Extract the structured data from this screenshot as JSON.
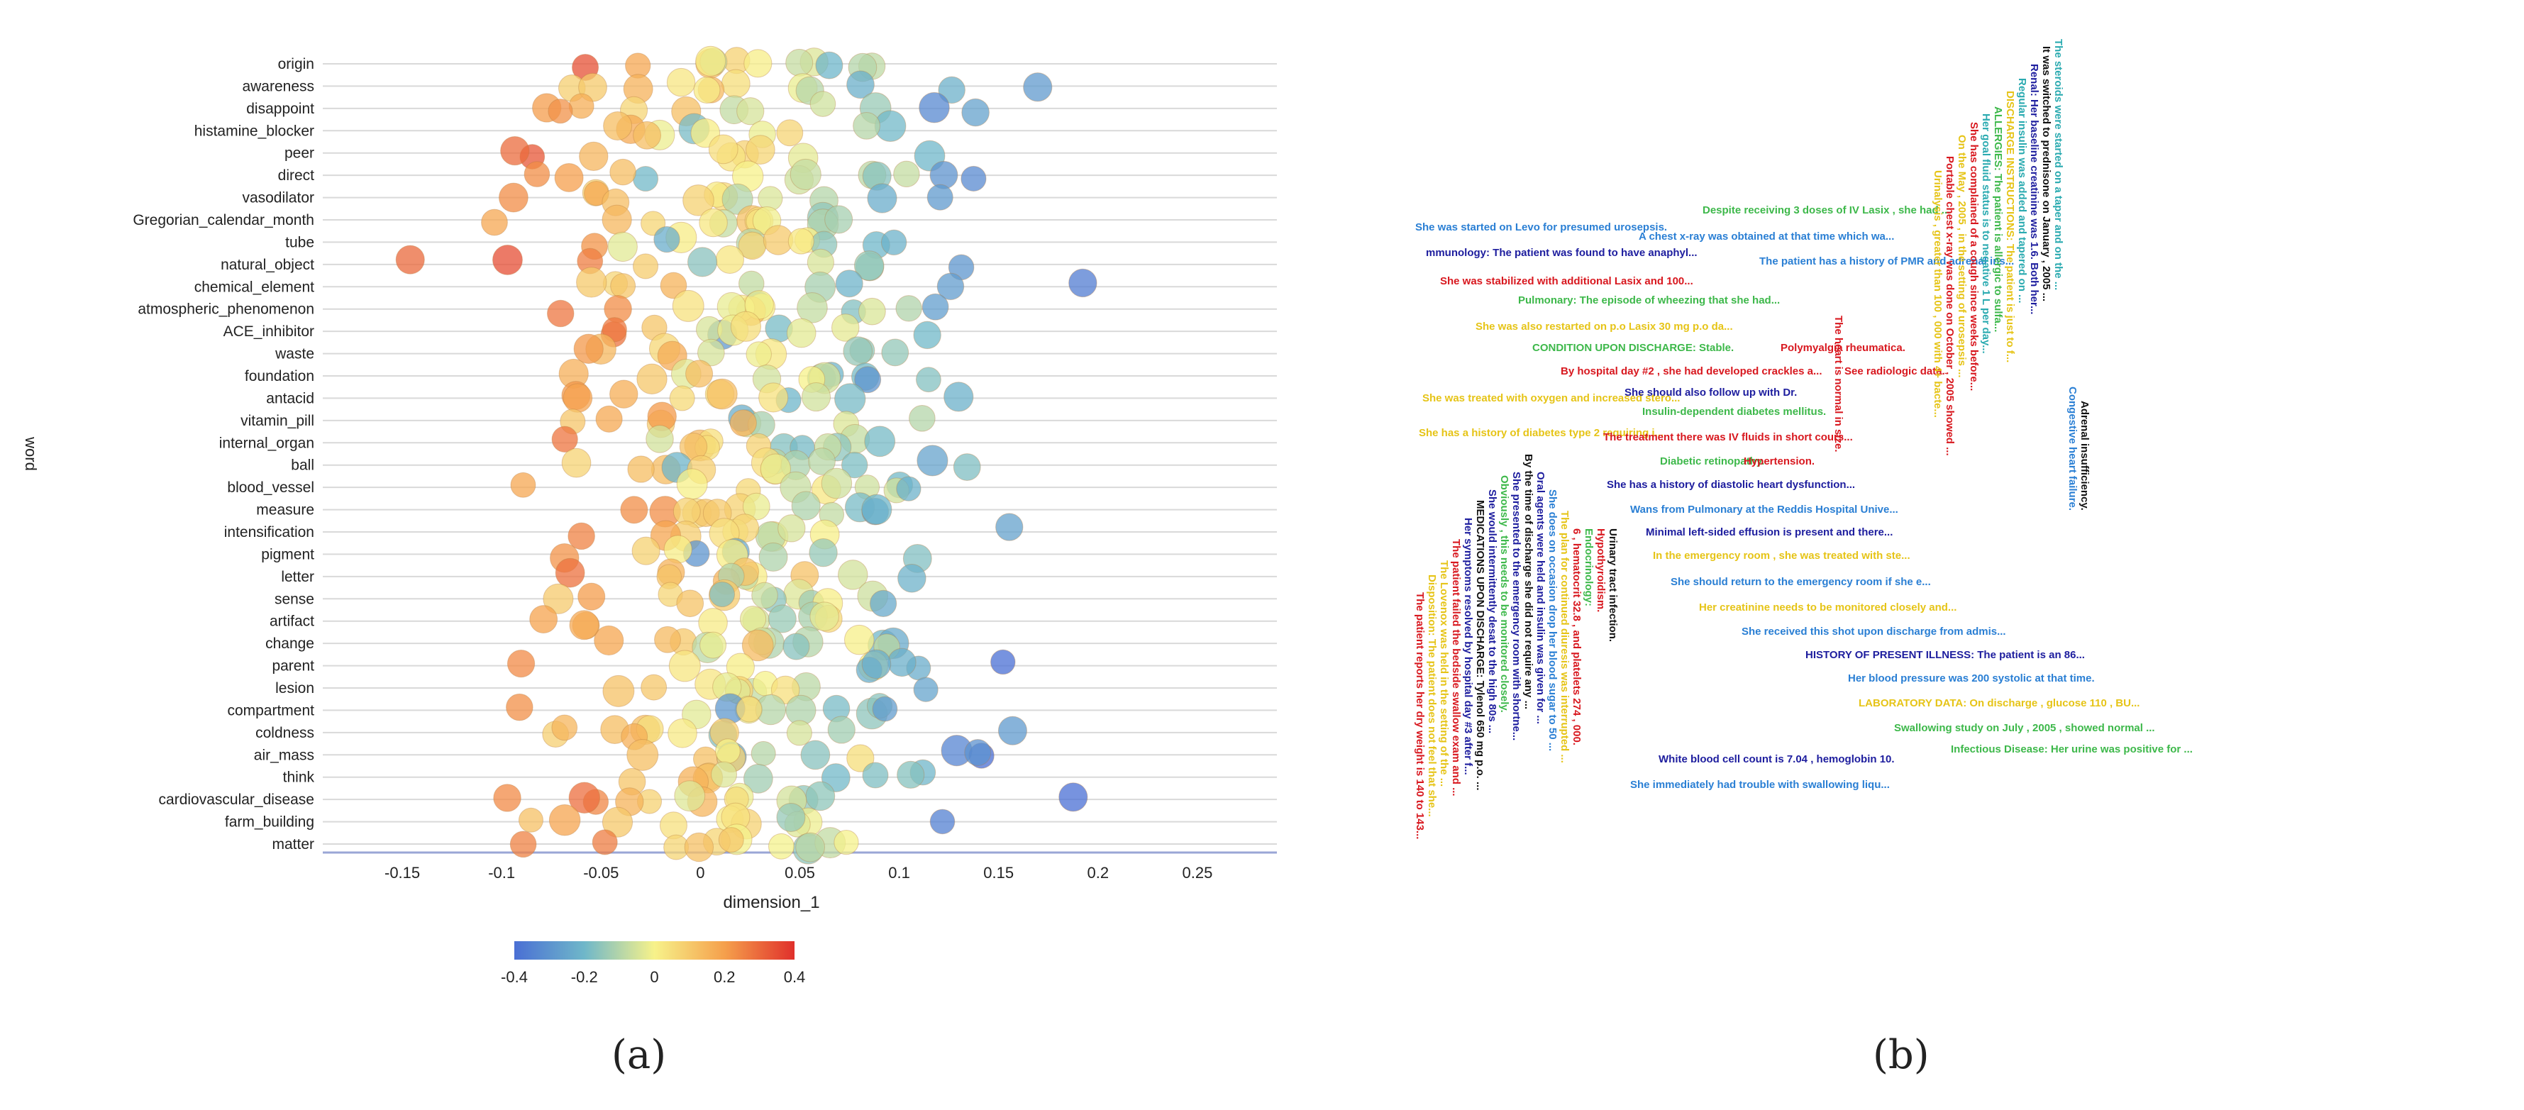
{
  "chart_data": [
    {
      "type": "scatter",
      "panel": "a",
      "xlabel": "dimension_1",
      "ylabel": "word",
      "xlim": [
        -0.19,
        0.29
      ],
      "xticks": [
        "-0.15",
        "-0.1",
        "-0.05",
        "0",
        "0.05",
        "0.1",
        "0.15",
        "0.2",
        "0.25"
      ],
      "xtick_values": [
        -0.15,
        -0.1,
        -0.05,
        0,
        0.05,
        0.1,
        0.15,
        0.2,
        0.25
      ],
      "categories": [
        "origin",
        "awareness",
        "disappoint",
        "histamine_blocker",
        "peer",
        "direct",
        "vasodilator",
        "Gregorian_calendar_month",
        "tube",
        "natural_object",
        "chemical_element",
        "atmospheric_phenomenon",
        "ACE_inhibitor",
        "waste",
        "foundation",
        "antacid",
        "vitamin_pill",
        "internal_organ",
        "ball",
        "blood_vessel",
        "measure",
        "intensification",
        "pigment",
        "letter",
        "sense",
        "artifact",
        "change",
        "parent",
        "lesion",
        "compartment",
        "coldness",
        "air_mass",
        "think",
        "cardiovascular_disease",
        "farm_building",
        "matter"
      ],
      "colorbar": {
        "min": -0.4,
        "max": 0.4,
        "ticks": [
          "-0.4",
          "-0.2",
          "0",
          "0.2",
          "0.4"
        ],
        "tick_values": [
          -0.4,
          -0.2,
          0,
          0.2,
          0.4
        ]
      },
      "colors": {
        "blue": "#4a6fd4",
        "cyan": "#6fb7c9",
        "yellow": "#f7f28a",
        "orange": "#f5a04c",
        "red": "#e0302b"
      },
      "caption": "(a)"
    },
    {
      "type": "text",
      "panel": "b",
      "caption": "(b)",
      "snippets": [
        {
          "text": "She was started on Levo for presumed urosepsis.",
          "color": "#2a7fd4"
        },
        {
          "text": "Despite receiving 3 doses of IV Lasix , she had ...",
          "color": "#3db84a"
        },
        {
          "text": "A chest x-ray was obtained at that time which wa...",
          "color": "#2a7fd4"
        },
        {
          "text": "mmunology: The patient was found to have anaphyl...",
          "color": "#1d1d9e"
        },
        {
          "text": "The patient has a history of PMR and adrenal ins...",
          "color": "#2a7fd4"
        },
        {
          "text": "She was stabilized with additional Lasix and 100...",
          "color": "#d8181f"
        },
        {
          "text": "Pulmonary: The episode of wheezing that she had...",
          "color": "#3db84a"
        },
        {
          "text": "She was also restarted on p.o Lasix 30 mg p.o da...",
          "color": "#e6c417"
        },
        {
          "text": "CONDITION UPON DISCHARGE: Stable.",
          "color": "#3db84a"
        },
        {
          "text": "Polymyalgia rheumatica.",
          "color": "#d8181f"
        },
        {
          "text": "By hospital day #2 , she had developed crackles a...",
          "color": "#d8181f"
        },
        {
          "text": "See radiologic data.",
          "color": "#d8181f"
        },
        {
          "text": "She was treated with oxygen and increased stero...",
          "color": "#e6c417"
        },
        {
          "text": "She should also follow up with Dr.",
          "color": "#1d1d9e"
        },
        {
          "text": "Insulin-dependent diabetes mellitus.",
          "color": "#3db84a"
        },
        {
          "text": "She has a history of diabetes type 2 requiring i...",
          "color": "#e6c417"
        },
        {
          "text": "The treatment there was IV fluids in short cours...",
          "color": "#d8181f"
        },
        {
          "text": "Diabetic retinopathy.",
          "color": "#3db84a"
        },
        {
          "text": "Hypertension.",
          "color": "#d8181f"
        },
        {
          "text": "She has a history of diastolic heart dysfunction...",
          "color": "#1d1d9e"
        },
        {
          "text": "Wans from Pulmonary at the Reddis Hospital Unive...",
          "color": "#2a7fd4"
        },
        {
          "text": "Minimal left-sided effusion is present and there...",
          "color": "#1d1d9e"
        },
        {
          "text": "In the emergency room , she was treated with ste...",
          "color": "#e6c417"
        },
        {
          "text": "She should return to the emergency room if she e...",
          "color": "#2a7fd4"
        },
        {
          "text": "Her creatinine needs to be monitored closely and...",
          "color": "#e6c417"
        },
        {
          "text": "She received this shot upon discharge from admis...",
          "color": "#2a7fd4"
        },
        {
          "text": "HISTORY OF PRESENT ILLNESS: The patient is an 86...",
          "color": "#1d1d9e"
        },
        {
          "text": "Her blood pressure was 200 systolic at that time.",
          "color": "#2a7fd4"
        },
        {
          "text": "LABORATORY DATA: On discharge , glucose 110 , BU...",
          "color": "#e6c417"
        },
        {
          "text": "Swallowing study on July , 2005 , showed normal ...",
          "color": "#3db84a"
        },
        {
          "text": "Infectious Disease: Her urine was positive for ...",
          "color": "#3db84a"
        },
        {
          "text": "White blood cell count is 7.04 , hemoglobin 10.",
          "color": "#1d1d9e"
        },
        {
          "text": "She immediately had trouble with swallowing liqu...",
          "color": "#2a7fd4"
        },
        {
          "text": "Urinary tract infection.",
          "color": "#111111"
        },
        {
          "text": "Hypothyroidism.",
          "color": "#d8181f"
        },
        {
          "text": "Endocrinology:",
          "color": "#3db84a"
        },
        {
          "text": "6 , hematocrit 32.8 , and platelets 274 , 000.",
          "color": "#d8181f"
        },
        {
          "text": "The plan for continued diuresis was interrupted ...",
          "color": "#e6c417"
        },
        {
          "text": "She does on occasion drop her blood sugar to 50 ...",
          "color": "#2a7fd4"
        },
        {
          "text": "Oral agents were held and insulin was given for ...",
          "color": "#1d1d9e"
        },
        {
          "text": "By the time of discharge she did not require any ...",
          "color": "#111111"
        },
        {
          "text": "She presented to the emergency room with shortne...",
          "color": "#1d1d9e"
        },
        {
          "text": "Obviously , this needs to be monitored closely.",
          "color": "#3db84a"
        },
        {
          "text": "She would intermittently desat to the high 80s ...",
          "color": "#1d1d9e"
        },
        {
          "text": "MEDICATIONS UPON DISCHARGE: Tylenol 650 mg p.o. ...",
          "color": "#111111"
        },
        {
          "text": "Her symptoms resolved by hospital day #3 after f...",
          "color": "#1d1d9e"
        },
        {
          "text": "The patient failed the bedside swallow exam and ...",
          "color": "#d8181f"
        },
        {
          "text": "The Lovenox was held in the setting of the ...",
          "color": "#e6c417"
        },
        {
          "text": "Disposition: The patient does not feel that she...",
          "color": "#e6c417"
        },
        {
          "text": "The patient reports her dry weight is 140 to 143...",
          "color": "#d8181f"
        },
        {
          "text": "The steroids were started on a taper and on the ...",
          "color": "#2aaab0"
        },
        {
          "text": "It was switched to prednisone on January , 2005 ...",
          "color": "#111111"
        },
        {
          "text": "Renal: Her baseline creatinine was 1.6. Both her...",
          "color": "#1d1d9e"
        },
        {
          "text": "Regular insulin was added and tapered on ...",
          "color": "#2aaab0"
        },
        {
          "text": "DISCHARGE INSTRUCTIONS: The patient is just to f...",
          "color": "#e6c417"
        },
        {
          "text": "ALLERGIES: The patient is allergic to sulfa...",
          "color": "#3db84a"
        },
        {
          "text": "Her goal fluid status is to negative 1 L per day...",
          "color": "#2aaab0"
        },
        {
          "text": "She has complained of a cough since weeks before...",
          "color": "#d8181f"
        },
        {
          "text": "On the May , 2005 , in the setting of urosepsis ...",
          "color": "#e6c417"
        },
        {
          "text": "Portable chest x-ray was done on October , 2005 showed ...",
          "color": "#d8181f"
        },
        {
          "text": "Urinalysis , greater than 100 , 000 with 4+ bacte...",
          "color": "#e6c417"
        },
        {
          "text": "Congestive heart failure.",
          "color": "#2a7fd4"
        },
        {
          "text": "Adrenal insufficiency.",
          "color": "#111111"
        },
        {
          "text": "The heart is normal in size.",
          "color": "#d8181f"
        }
      ]
    }
  ]
}
